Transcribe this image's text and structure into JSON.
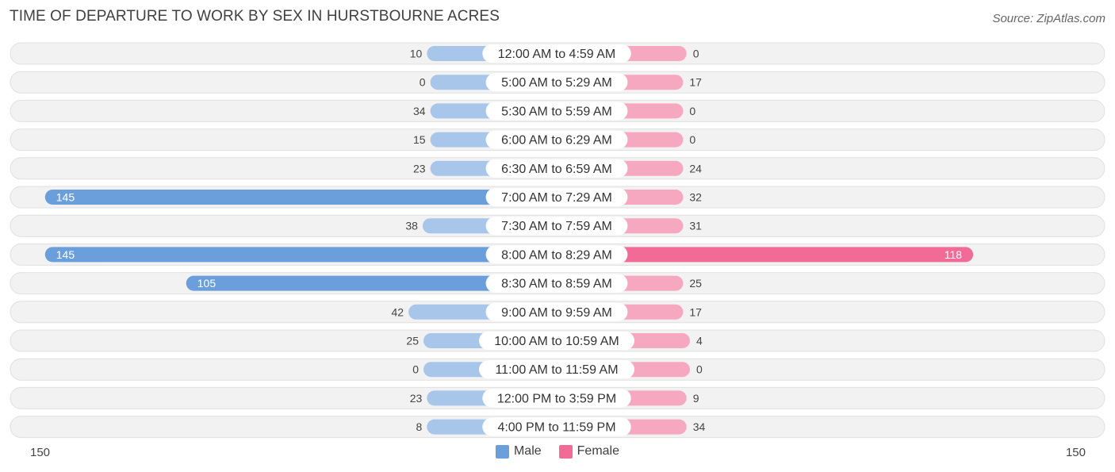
{
  "title": "TIME OF DEPARTURE TO WORK BY SEX IN HURSTBOURNE ACRES",
  "source": "Source: ZipAtlas.com",
  "colors": {
    "male": "#6a9fdc",
    "male_light": "#a8c6ea",
    "female": "#f26b96",
    "female_light": "#f7a8c1",
    "row_bg": "#f2f2f2",
    "row_border": "#e0e0e0"
  },
  "chart_data": {
    "type": "bar",
    "orientation": "horizontal-diverging",
    "categories": [
      "12:00 AM to 4:59 AM",
      "5:00 AM to 5:29 AM",
      "5:30 AM to 5:59 AM",
      "6:00 AM to 6:29 AM",
      "6:30 AM to 6:59 AM",
      "7:00 AM to 7:29 AM",
      "7:30 AM to 7:59 AM",
      "8:00 AM to 8:29 AM",
      "8:30 AM to 8:59 AM",
      "9:00 AM to 9:59 AM",
      "10:00 AM to 10:59 AM",
      "11:00 AM to 11:59 AM",
      "12:00 PM to 3:59 PM",
      "4:00 PM to 11:59 PM"
    ],
    "series": [
      {
        "name": "Male",
        "values": [
          10,
          0,
          34,
          15,
          23,
          145,
          38,
          145,
          105,
          42,
          25,
          0,
          23,
          8
        ]
      },
      {
        "name": "Female",
        "values": [
          0,
          17,
          0,
          0,
          24,
          32,
          31,
          118,
          25,
          17,
          4,
          0,
          9,
          34
        ]
      }
    ],
    "axis_min_label": "150",
    "axis_max_label": "150",
    "xlim": [
      -150,
      150
    ],
    "legend_position": "bottom-center"
  }
}
